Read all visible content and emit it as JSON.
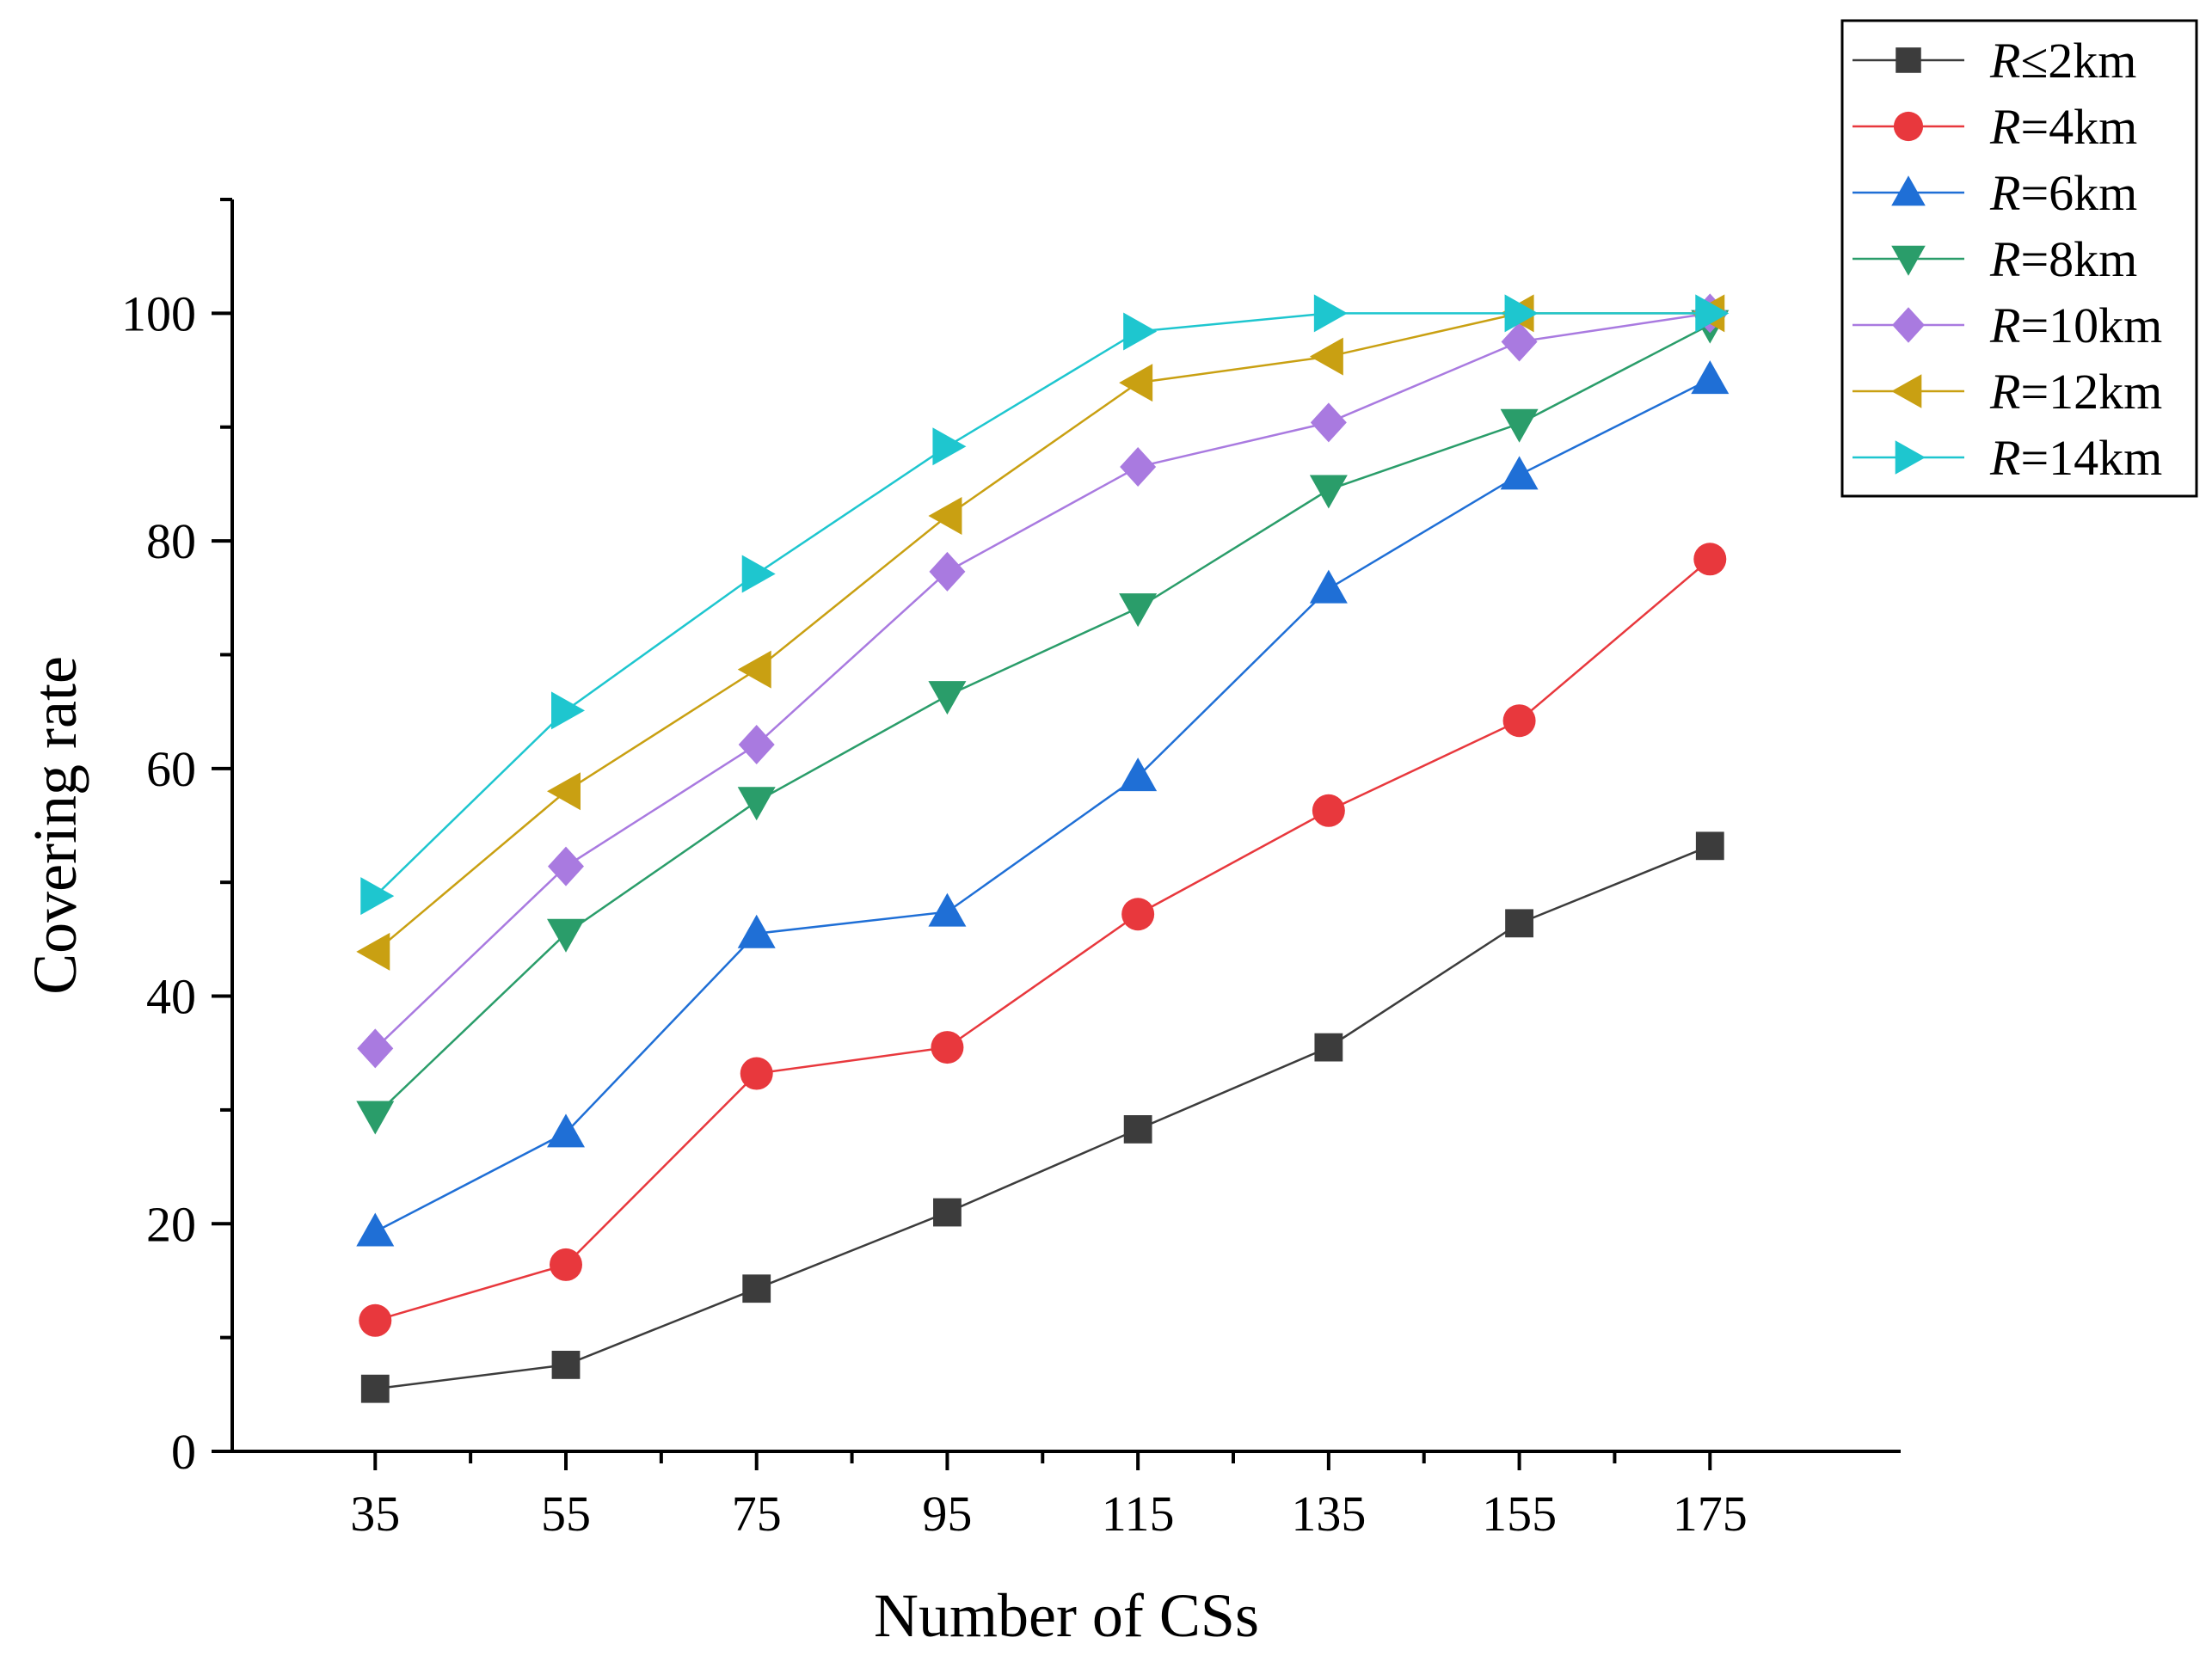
{
  "chart_data": {
    "type": "line",
    "title": "",
    "xlabel": "Number of CSs",
    "ylabel": "Covering rate",
    "categories": [
      "35",
      "55",
      "75",
      "95",
      "115",
      "135",
      "155",
      "175"
    ],
    "x": [
      35,
      55,
      75,
      95,
      115,
      135,
      155,
      175
    ],
    "xlim": [
      20,
      195
    ],
    "ylim": [
      0,
      110
    ],
    "yticks": [
      "0",
      "20",
      "40",
      "60",
      "80",
      "100"
    ],
    "grid": false,
    "legend_position": "top-right",
    "series": [
      {
        "name": "R≤2km",
        "name_italic": "R",
        "name_rest": "≤2km",
        "color": "#3c3c3c",
        "marker": "square",
        "values": [
          5.5,
          7.6,
          14.3,
          21.0,
          28.3,
          35.5,
          46.4,
          53.2
        ]
      },
      {
        "name": "R=4km",
        "name_italic": "R",
        "name_rest": "=4km",
        "color": "#e8383d",
        "marker": "circle",
        "values": [
          11.5,
          16.4,
          33.2,
          35.5,
          47.2,
          56.3,
          64.2,
          78.4
        ]
      },
      {
        "name": "R=6km",
        "name_italic": "R",
        "name_rest": "=6km",
        "color": "#1f6fd6",
        "marker": "triangle-up",
        "values": [
          19.3,
          28.0,
          45.5,
          47.4,
          59.3,
          75.8,
          85.8,
          94.2
        ]
      },
      {
        "name": "R=8km",
        "name_italic": "R",
        "name_rest": "=8km",
        "color": "#2a9d6a",
        "marker": "triangle-down",
        "values": [
          29.5,
          45.5,
          57.1,
          66.4,
          74.1,
          84.5,
          90.3,
          99.0
        ]
      },
      {
        "name": "R=10km",
        "name_italic": "R",
        "name_rest": "=10km",
        "color": "#a97ae0",
        "marker": "diamond",
        "values": [
          35.4,
          51.4,
          62.1,
          77.3,
          86.5,
          90.4,
          97.5,
          100.0
        ]
      },
      {
        "name": "R=12km",
        "name_italic": "R",
        "name_rest": "=12km",
        "color": "#c9a012",
        "marker": "triangle-left",
        "values": [
          43.9,
          58.0,
          68.7,
          82.2,
          93.9,
          96.2,
          100.0,
          100.0
        ]
      },
      {
        "name": "R=14km",
        "name_italic": "R",
        "name_rest": "=14km",
        "color": "#1ec6cf",
        "marker": "triangle-right",
        "values": [
          48.8,
          65.1,
          77.1,
          88.3,
          98.4,
          100.0,
          100.0,
          100.0
        ]
      }
    ]
  }
}
